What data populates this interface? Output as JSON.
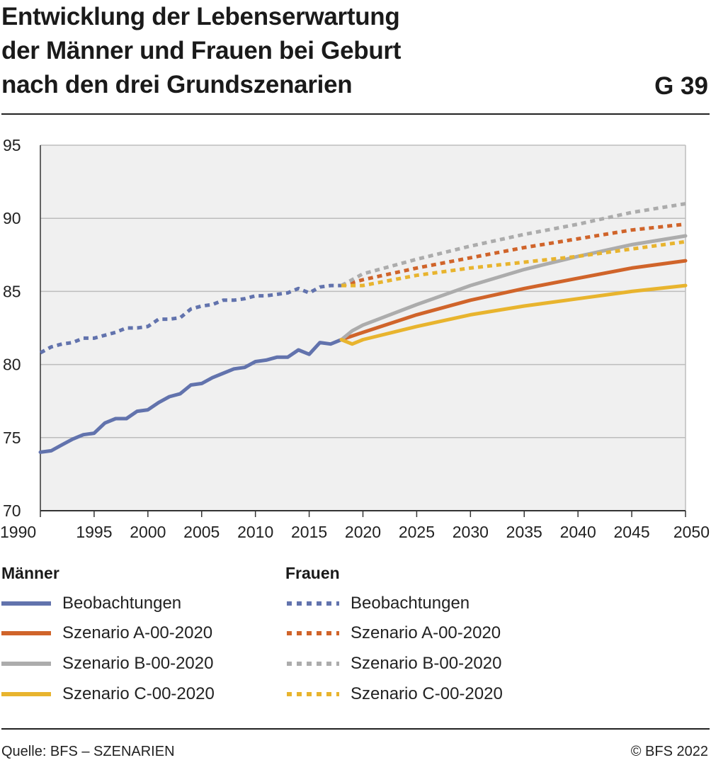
{
  "header": {
    "title_lines": [
      "Entwicklung der Lebenserwartung",
      "der Männer und Frauen bei Geburt",
      "nach den drei Grundszenarien"
    ],
    "figure_id": "G 39"
  },
  "colors": {
    "observed": "#6273ad",
    "scenario_a": "#d0642a",
    "scenario_b": "#acacac",
    "scenario_c": "#e8b42e",
    "plot_bg": "#f0f0f0",
    "grid": "#bdbdbd"
  },
  "chart_data": {
    "type": "line",
    "title": "Entwicklung der Lebenserwartung der Männer und Frauen bei Geburt nach den drei Grundszenarien",
    "xlabel": "",
    "ylabel": "",
    "xlim": [
      1990,
      2050
    ],
    "ylim": [
      70,
      95
    ],
    "x_ticks": [
      "1990",
      "1995",
      "2000",
      "2005",
      "2010",
      "2015",
      "2020",
      "2025",
      "2030",
      "2035",
      "2040",
      "2045",
      "2050"
    ],
    "y_ticks": [
      "70",
      "75",
      "80",
      "85",
      "90",
      "95"
    ],
    "grid": "horizontal",
    "legend_position": "bottom",
    "series": [
      {
        "name": "Beobachtungen",
        "group": "Männer",
        "style": "solid",
        "color": "#6273ad",
        "x": [
          1990,
          1991,
          1992,
          1993,
          1994,
          1995,
          1996,
          1997,
          1998,
          1999,
          2000,
          2001,
          2002,
          2003,
          2004,
          2005,
          2006,
          2007,
          2008,
          2009,
          2010,
          2011,
          2012,
          2013,
          2014,
          2015,
          2016,
          2017,
          2018
        ],
        "y": [
          74.0,
          74.1,
          74.5,
          74.9,
          75.2,
          75.3,
          76.0,
          76.3,
          76.3,
          76.8,
          76.9,
          77.4,
          77.8,
          78.0,
          78.6,
          78.7,
          79.1,
          79.4,
          79.7,
          79.8,
          80.2,
          80.3,
          80.5,
          80.5,
          81.0,
          80.7,
          81.5,
          81.4,
          81.7
        ]
      },
      {
        "name": "Szenario A-00-2020",
        "group": "Männer",
        "style": "solid",
        "color": "#d0642a",
        "x": [
          2018,
          2020,
          2025,
          2030,
          2035,
          2040,
          2045,
          2050
        ],
        "y": [
          81.7,
          82.2,
          83.4,
          84.4,
          85.2,
          85.9,
          86.6,
          87.1
        ]
      },
      {
        "name": "Szenario B-00-2020",
        "group": "Männer",
        "style": "solid",
        "color": "#acacac",
        "x": [
          2018,
          2019,
          2020,
          2025,
          2030,
          2035,
          2040,
          2045,
          2050
        ],
        "y": [
          81.7,
          82.3,
          82.7,
          84.1,
          85.4,
          86.5,
          87.4,
          88.2,
          88.8
        ]
      },
      {
        "name": "Szenario C-00-2020",
        "group": "Männer",
        "style": "solid",
        "color": "#e8b42e",
        "x": [
          2018,
          2019,
          2020,
          2025,
          2030,
          2035,
          2040,
          2045,
          2050
        ],
        "y": [
          81.7,
          81.4,
          81.7,
          82.6,
          83.4,
          84.0,
          84.5,
          85.0,
          85.4
        ]
      },
      {
        "name": "Beobachtungen",
        "group": "Frauen",
        "style": "dotted",
        "color": "#6273ad",
        "x": [
          1990,
          1991,
          1992,
          1993,
          1994,
          1995,
          1996,
          1997,
          1998,
          1999,
          2000,
          2001,
          2002,
          2003,
          2004,
          2005,
          2006,
          2007,
          2008,
          2009,
          2010,
          2011,
          2012,
          2013,
          2014,
          2015,
          2016,
          2017,
          2018
        ],
        "y": [
          80.8,
          81.2,
          81.4,
          81.5,
          81.8,
          81.8,
          82.0,
          82.2,
          82.5,
          82.5,
          82.6,
          83.1,
          83.1,
          83.2,
          83.8,
          84.0,
          84.1,
          84.4,
          84.4,
          84.5,
          84.7,
          84.7,
          84.8,
          84.9,
          85.2,
          84.9,
          85.3,
          85.4,
          85.4
        ]
      },
      {
        "name": "Szenario A-00-2020",
        "group": "Frauen",
        "style": "dotted",
        "color": "#d0642a",
        "x": [
          2018,
          2020,
          2025,
          2030,
          2035,
          2040,
          2045,
          2050
        ],
        "y": [
          85.4,
          85.8,
          86.6,
          87.3,
          88.0,
          88.6,
          89.2,
          89.6
        ]
      },
      {
        "name": "Szenario B-00-2020",
        "group": "Frauen",
        "style": "dotted",
        "color": "#acacac",
        "x": [
          2018,
          2020,
          2025,
          2030,
          2035,
          2040,
          2045,
          2050
        ],
        "y": [
          85.4,
          86.2,
          87.2,
          88.1,
          88.9,
          89.6,
          90.4,
          91.0
        ]
      },
      {
        "name": "Szenario C-00-2020",
        "group": "Frauen",
        "style": "dotted",
        "color": "#e8b42e",
        "x": [
          2018,
          2020,
          2025,
          2030,
          2035,
          2040,
          2045,
          2050
        ],
        "y": [
          85.4,
          85.4,
          86.1,
          86.6,
          87.0,
          87.4,
          87.9,
          88.4
        ]
      }
    ]
  },
  "legend": {
    "maenner_title": "Männer",
    "frauen_title": "Frauen",
    "items": [
      "Beobachtungen",
      "Szenario A-00-2020",
      "Szenario B-00-2020",
      "Szenario C-00-2020",
      "Beobachtungen",
      "Szenario A-00-2020",
      "Szenario B-00-2020",
      "Szenario C-00-2020"
    ]
  },
  "footer": {
    "source": "Quelle: BFS – SZENARIEN",
    "copyright": "© BFS 2022"
  }
}
